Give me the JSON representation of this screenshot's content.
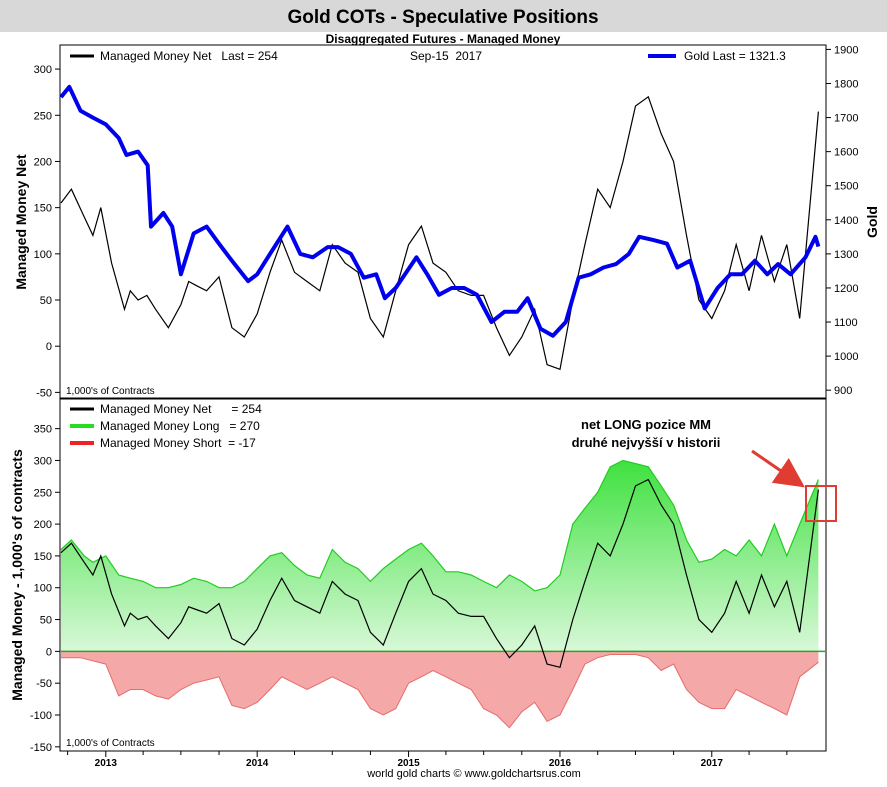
{
  "header": {
    "title": "Gold COTs - Speculative Positions",
    "subtitle": "Disaggregated Futures - Managed Money"
  },
  "footer": {
    "credit": "world gold charts © www.goldchartsrus.com"
  },
  "colors": {
    "net": "#000000",
    "gold": "#0000ee",
    "long_line": "#22cc22",
    "long_fill_top": "#3fe13f",
    "long_fill_bottom": "#d8f8d8",
    "short_line": "#e86a6a",
    "short_fill": "#f5a8a8",
    "highlight_box": "#e03c31",
    "arrow": "#e03c31",
    "header_bg": "#d8d8d8"
  },
  "chart_data": [
    {
      "type": "line",
      "panel": "top",
      "legend": {
        "net_label": "Managed Money Net   Last = 254",
        "date_label": "Sep-15  2017",
        "gold_label": "Gold Last = 1321.3"
      },
      "ylabel": "Managed Money Net",
      "y2label": "Gold",
      "units_note": "1,000's of Contracts",
      "ylim": [
        -55,
        325
      ],
      "yticks": [
        -50,
        0,
        50,
        100,
        150,
        200,
        250,
        300
      ],
      "y2lim": [
        880,
        1910
      ],
      "y2ticks": [
        900,
        1000,
        1100,
        1200,
        1300,
        1400,
        1500,
        1600,
        1700,
        1800,
        1900
      ],
      "series": [
        {
          "name": "Managed Money Net",
          "x": [
            "2012-09-15",
            "2012-10-10",
            "2012-11-10",
            "2012-12-01",
            "2012-12-20",
            "2013-01-15",
            "2013-02-15",
            "2013-03-01",
            "2013-03-20",
            "2013-04-10",
            "2013-05-01",
            "2013-06-01",
            "2013-07-01",
            "2013-07-20",
            "2013-08-10",
            "2013-09-01",
            "2013-10-01",
            "2013-11-01",
            "2013-12-01",
            "2014-01-01",
            "2014-02-01",
            "2014-03-01",
            "2014-04-01",
            "2014-05-01",
            "2014-06-01",
            "2014-07-01",
            "2014-08-01",
            "2014-09-01",
            "2014-10-01",
            "2014-11-01",
            "2014-12-01",
            "2015-01-01",
            "2015-02-01",
            "2015-03-01",
            "2015-04-01",
            "2015-05-01",
            "2015-06-01",
            "2015-07-01",
            "2015-08-01",
            "2015-09-01",
            "2015-10-01",
            "2015-11-01",
            "2015-12-01",
            "2016-01-01",
            "2016-02-01",
            "2016-03-01",
            "2016-04-01",
            "2016-05-01",
            "2016-06-01",
            "2016-07-01",
            "2016-08-01",
            "2016-09-01",
            "2016-10-01",
            "2016-11-01",
            "2016-12-01",
            "2017-01-01",
            "2017-02-01",
            "2017-03-01",
            "2017-04-01",
            "2017-05-01",
            "2017-06-01",
            "2017-07-01",
            "2017-08-01",
            "2017-09-15"
          ],
          "y": [
            155,
            170,
            140,
            120,
            150,
            90,
            40,
            60,
            50,
            55,
            40,
            20,
            45,
            70,
            65,
            60,
            75,
            20,
            10,
            35,
            80,
            115,
            80,
            70,
            60,
            110,
            90,
            80,
            30,
            10,
            60,
            110,
            130,
            90,
            80,
            60,
            55,
            55,
            20,
            -10,
            10,
            40,
            -20,
            -25,
            50,
            110,
            170,
            150,
            200,
            260,
            270,
            230,
            200,
            120,
            50,
            30,
            60,
            110,
            60,
            120,
            70,
            110,
            30,
            254
          ]
        },
        {
          "name": "Gold",
          "x": [
            "2012-09-15",
            "2012-10-05",
            "2012-11-01",
            "2012-12-01",
            "2013-01-01",
            "2013-02-01",
            "2013-02-20",
            "2013-03-20",
            "2013-04-12",
            "2013-04-20",
            "2013-05-20",
            "2013-06-10",
            "2013-07-01",
            "2013-08-01",
            "2013-09-01",
            "2013-10-01",
            "2013-11-01",
            "2013-12-10",
            "2014-01-01",
            "2014-02-01",
            "2014-03-15",
            "2014-04-15",
            "2014-05-15",
            "2014-06-20",
            "2014-07-15",
            "2014-08-15",
            "2014-09-15",
            "2014-10-15",
            "2014-11-05",
            "2014-12-01",
            "2015-01-20",
            "2015-02-15",
            "2015-03-15",
            "2015-04-15",
            "2015-05-15",
            "2015-06-15",
            "2015-07-20",
            "2015-08-20",
            "2015-09-20",
            "2015-10-15",
            "2015-11-15",
            "2015-12-15",
            "2016-01-15",
            "2016-02-15",
            "2016-03-15",
            "2016-04-15",
            "2016-05-15",
            "2016-06-15",
            "2016-07-10",
            "2016-08-15",
            "2016-09-15",
            "2016-10-10",
            "2016-11-10",
            "2016-12-15",
            "2017-01-15",
            "2017-02-15",
            "2017-03-15",
            "2017-04-15",
            "2017-05-15",
            "2017-06-10",
            "2017-07-10",
            "2017-08-15",
            "2017-09-08",
            "2017-09-15"
          ],
          "y": [
            1760,
            1790,
            1720,
            1700,
            1680,
            1640,
            1590,
            1600,
            1560,
            1380,
            1420,
            1380,
            1240,
            1360,
            1380,
            1330,
            1280,
            1220,
            1240,
            1300,
            1380,
            1300,
            1290,
            1320,
            1320,
            1300,
            1230,
            1240,
            1170,
            1200,
            1290,
            1240,
            1180,
            1200,
            1200,
            1180,
            1100,
            1130,
            1130,
            1170,
            1080,
            1060,
            1100,
            1230,
            1240,
            1260,
            1270,
            1300,
            1350,
            1340,
            1330,
            1260,
            1280,
            1140,
            1200,
            1240,
            1240,
            1280,
            1240,
            1270,
            1240,
            1290,
            1350,
            1321.3
          ]
        }
      ]
    },
    {
      "type": "area",
      "panel": "bottom",
      "legend": {
        "net_label": "Managed Money Net      = 254",
        "long_label": "Managed Money Long   = 270",
        "short_label": "Managed Money Short  = -17"
      },
      "ylabel": "Managed Money - 1,000's of contracts",
      "units_note": "1,000's of Contracts",
      "annotation": {
        "line1": "net LONG pozice MM",
        "line2": "druhé nejvyšší v historii"
      },
      "ylim": [
        -155,
        395
      ],
      "yticks": [
        -150,
        -100,
        -50,
        0,
        50,
        100,
        150,
        200,
        250,
        300,
        350
      ],
      "xlim": [
        "2012-09-15",
        "2017-10-01"
      ],
      "xticks": [
        "2013",
        "2014",
        "2015",
        "2016",
        "2017"
      ],
      "series": [
        {
          "name": "Managed Money Long",
          "x": [
            "2012-09-15",
            "2012-10-10",
            "2012-11-10",
            "2012-12-01",
            "2013-01-01",
            "2013-02-01",
            "2013-03-01",
            "2013-04-01",
            "2013-05-01",
            "2013-06-01",
            "2013-07-01",
            "2013-08-01",
            "2013-09-01",
            "2013-10-01",
            "2013-11-01",
            "2013-12-01",
            "2014-01-01",
            "2014-02-01",
            "2014-03-01",
            "2014-04-01",
            "2014-05-01",
            "2014-06-01",
            "2014-07-01",
            "2014-08-01",
            "2014-09-01",
            "2014-10-01",
            "2014-11-01",
            "2014-12-01",
            "2015-01-01",
            "2015-02-01",
            "2015-03-01",
            "2015-04-01",
            "2015-05-01",
            "2015-06-01",
            "2015-07-01",
            "2015-08-01",
            "2015-09-01",
            "2015-10-01",
            "2015-11-01",
            "2015-12-01",
            "2016-01-01",
            "2016-02-01",
            "2016-03-01",
            "2016-04-01",
            "2016-05-01",
            "2016-06-01",
            "2016-07-01",
            "2016-08-01",
            "2016-09-01",
            "2016-10-01",
            "2016-11-01",
            "2016-12-01",
            "2017-01-01",
            "2017-02-01",
            "2017-03-01",
            "2017-04-01",
            "2017-05-01",
            "2017-06-01",
            "2017-07-01",
            "2017-08-01",
            "2017-09-15"
          ],
          "y": [
            160,
            175,
            150,
            140,
            150,
            120,
            115,
            110,
            100,
            100,
            105,
            115,
            110,
            100,
            100,
            110,
            130,
            150,
            155,
            135,
            120,
            115,
            160,
            140,
            130,
            110,
            130,
            145,
            160,
            170,
            150,
            125,
            125,
            120,
            110,
            100,
            120,
            110,
            95,
            100,
            120,
            200,
            225,
            250,
            290,
            300,
            295,
            290,
            260,
            230,
            175,
            140,
            145,
            160,
            150,
            175,
            150,
            200,
            150,
            200,
            270
          ]
        },
        {
          "name": "Managed Money Short",
          "x": [
            "2012-09-15",
            "2012-11-01",
            "2013-01-01",
            "2013-02-01",
            "2013-03-01",
            "2013-04-01",
            "2013-05-01",
            "2013-06-01",
            "2013-07-01",
            "2013-08-01",
            "2013-09-01",
            "2013-10-01",
            "2013-11-01",
            "2013-12-01",
            "2014-01-01",
            "2014-02-01",
            "2014-03-01",
            "2014-04-01",
            "2014-05-01",
            "2014-06-01",
            "2014-07-01",
            "2014-08-01",
            "2014-09-01",
            "2014-10-01",
            "2014-11-01",
            "2014-12-01",
            "2015-01-01",
            "2015-02-01",
            "2015-03-01",
            "2015-04-01",
            "2015-05-01",
            "2015-06-01",
            "2015-07-01",
            "2015-08-01",
            "2015-09-01",
            "2015-10-01",
            "2015-11-01",
            "2015-12-01",
            "2016-01-01",
            "2016-02-01",
            "2016-03-01",
            "2016-04-01",
            "2016-05-01",
            "2016-06-01",
            "2016-07-01",
            "2016-08-01",
            "2016-09-01",
            "2016-10-01",
            "2016-11-01",
            "2016-12-01",
            "2017-01-01",
            "2017-02-01",
            "2017-03-01",
            "2017-04-01",
            "2017-05-01",
            "2017-06-01",
            "2017-07-01",
            "2017-08-01",
            "2017-09-15"
          ],
          "y": [
            -10,
            -10,
            -20,
            -70,
            -60,
            -60,
            -70,
            -75,
            -60,
            -50,
            -45,
            -40,
            -85,
            -90,
            -80,
            -60,
            -40,
            -50,
            -60,
            -50,
            -40,
            -50,
            -60,
            -90,
            -100,
            -90,
            -50,
            -40,
            -30,
            -40,
            -50,
            -60,
            -90,
            -100,
            -120,
            -95,
            -80,
            -110,
            -100,
            -60,
            -20,
            -10,
            -5,
            -5,
            -5,
            -10,
            -30,
            -20,
            -60,
            -80,
            -90,
            -90,
            -60,
            -70,
            -80,
            -90,
            -100,
            -40,
            -17
          ]
        },
        {
          "name": "Managed Money Net",
          "x": [
            "2012-09-15",
            "2012-10-10",
            "2012-11-10",
            "2012-12-01",
            "2012-12-20",
            "2013-01-15",
            "2013-02-15",
            "2013-03-01",
            "2013-03-20",
            "2013-04-10",
            "2013-05-01",
            "2013-06-01",
            "2013-07-01",
            "2013-07-20",
            "2013-08-10",
            "2013-09-01",
            "2013-10-01",
            "2013-11-01",
            "2013-12-01",
            "2014-01-01",
            "2014-02-01",
            "2014-03-01",
            "2014-04-01",
            "2014-05-01",
            "2014-06-01",
            "2014-07-01",
            "2014-08-01",
            "2014-09-01",
            "2014-10-01",
            "2014-11-01",
            "2014-12-01",
            "2015-01-01",
            "2015-02-01",
            "2015-03-01",
            "2015-04-01",
            "2015-05-01",
            "2015-06-01",
            "2015-07-01",
            "2015-08-01",
            "2015-09-01",
            "2015-10-01",
            "2015-11-01",
            "2015-12-01",
            "2016-01-01",
            "2016-02-01",
            "2016-03-01",
            "2016-04-01",
            "2016-05-01",
            "2016-06-01",
            "2016-07-01",
            "2016-08-01",
            "2016-09-01",
            "2016-10-01",
            "2016-11-01",
            "2016-12-01",
            "2017-01-01",
            "2017-02-01",
            "2017-03-01",
            "2017-04-01",
            "2017-05-01",
            "2017-06-01",
            "2017-07-01",
            "2017-08-01",
            "2017-09-15"
          ],
          "y": [
            155,
            170,
            140,
            120,
            150,
            90,
            40,
            60,
            50,
            55,
            40,
            20,
            45,
            70,
            65,
            60,
            75,
            20,
            10,
            35,
            80,
            115,
            80,
            70,
            60,
            110,
            90,
            80,
            30,
            10,
            60,
            110,
            130,
            90,
            80,
            60,
            55,
            55,
            20,
            -10,
            10,
            40,
            -20,
            -25,
            50,
            110,
            170,
            150,
            200,
            260,
            270,
            230,
            200,
            120,
            50,
            30,
            60,
            110,
            60,
            120,
            70,
            110,
            30,
            254
          ]
        }
      ]
    }
  ]
}
